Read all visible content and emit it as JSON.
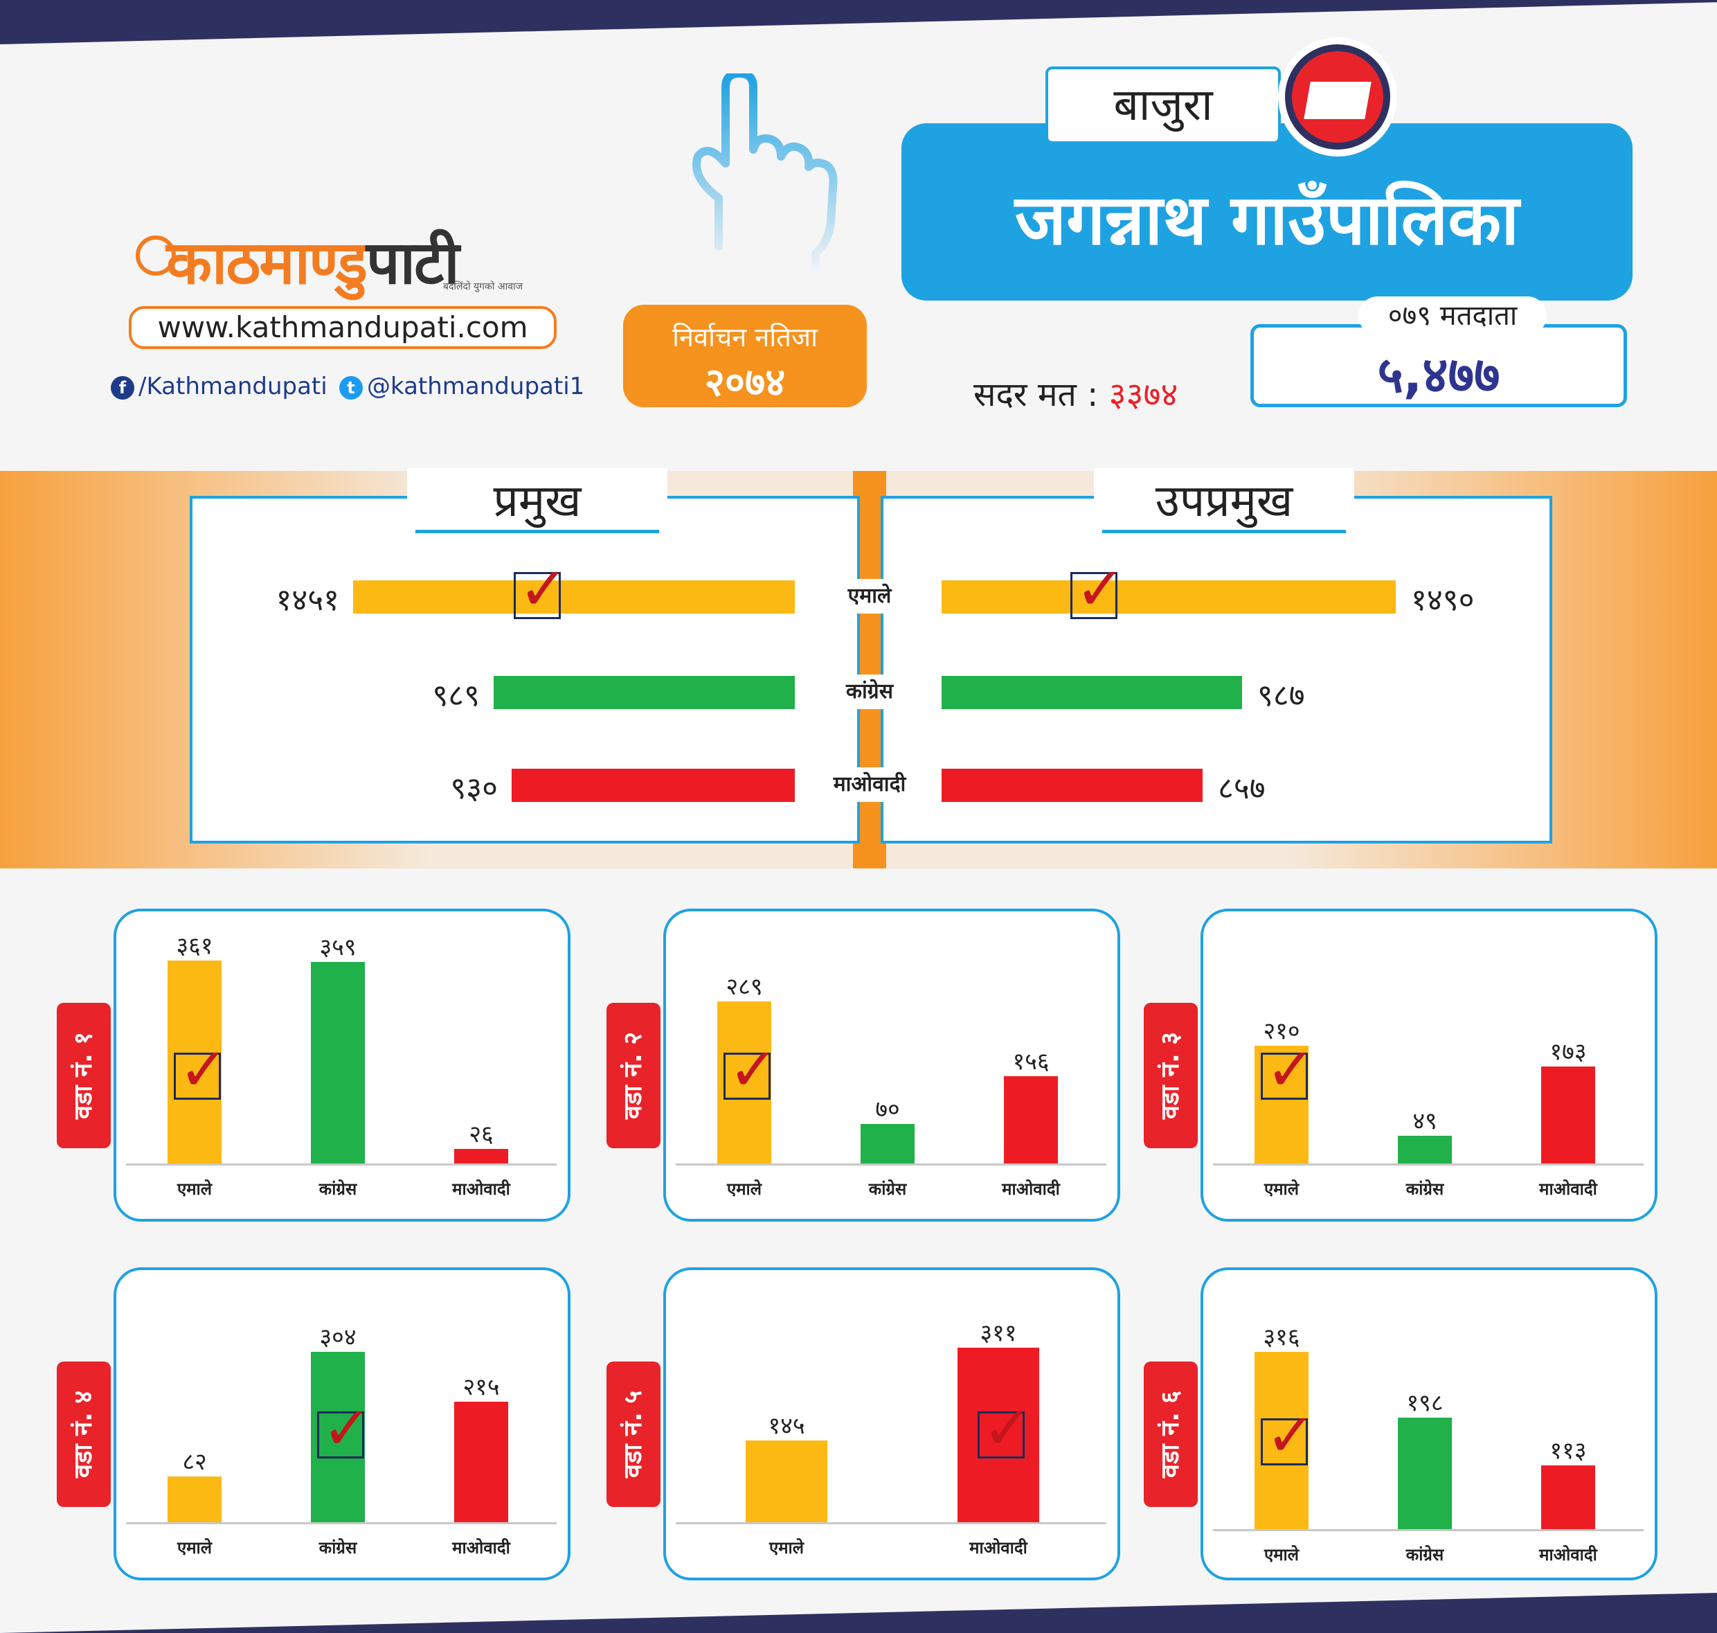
{
  "brand": {
    "logo_main": "काठमाण्डु",
    "logo_accent": "पाटी",
    "tagline": "बदलिंदो युगको आवाज",
    "website": "www.kathmandupati.com",
    "facebook": "/Kathmandupati",
    "twitter": "@kathmandupati1"
  },
  "election": {
    "label_line1": "निर्वाचन नतिजा",
    "label_line2": "२०७४"
  },
  "location": {
    "district": "बाजुरा",
    "municipality": "जगन्नाथ गाउँपालिका",
    "voters_label": "०७९ मतदाता",
    "voters_value": "५,४७७",
    "valid_label": "सदर मत :",
    "valid_value": "३३७४"
  },
  "colors": {
    "uml": "#fdb913",
    "congress": "#21b14b",
    "maoist": "#ed1c24",
    "accent": "#1ea2e2",
    "orange": "#f6921e",
    "navy": "#2e3160"
  },
  "icons": [
    "finger-vote-icon",
    "ballot-box-icon",
    "facebook-icon",
    "twitter-icon",
    "checkmark-icon"
  ],
  "chart_data": [
    {
      "type": "bar",
      "title": "प्रमुख",
      "orientation": "horizontal",
      "categories": [
        "एमाले",
        "कांग्रेस",
        "माओवादी"
      ],
      "values": [
        1451,
        989,
        930
      ],
      "value_labels": [
        "१४५१",
        "९८९",
        "९३०"
      ],
      "winner": "एमाले"
    },
    {
      "type": "bar",
      "title": "उपप्रमुख",
      "orientation": "horizontal",
      "categories": [
        "एमाले",
        "कांग्रेस",
        "माओवादी"
      ],
      "values": [
        1490,
        987,
        857
      ],
      "value_labels": [
        "१४९०",
        "९८७",
        "८५७"
      ],
      "winner": "एमाले"
    },
    {
      "type": "bar",
      "title": "वडा नं. १",
      "categories": [
        "एमाले",
        "कांग्रेस",
        "माओवादी"
      ],
      "values": [
        361,
        359,
        26
      ],
      "value_labels": [
        "३६१",
        "३५९",
        "२६"
      ],
      "winner": "एमाले"
    },
    {
      "type": "bar",
      "title": "वडा नं. २",
      "categories": [
        "एमाले",
        "कांग्रेस",
        "माओवादी"
      ],
      "values": [
        289,
        70,
        156
      ],
      "value_labels": [
        "२८९",
        "७०",
        "१५६"
      ],
      "winner": "एमाले"
    },
    {
      "type": "bar",
      "title": "वडा नं. ३",
      "categories": [
        "एमाले",
        "कांग्रेस",
        "माओवादी"
      ],
      "values": [
        210,
        49,
        173
      ],
      "value_labels": [
        "२१०",
        "४९",
        "१७३"
      ],
      "winner": "एमाले"
    },
    {
      "type": "bar",
      "title": "वडा नं. ४",
      "categories": [
        "एमाले",
        "कांग्रेस",
        "माओवादी"
      ],
      "values": [
        82,
        304,
        215
      ],
      "value_labels": [
        "८२",
        "३०४",
        "२१५"
      ],
      "winner": "कांग्रेस"
    },
    {
      "type": "bar",
      "title": "वडा नं. ५",
      "categories": [
        "एमाले",
        "माओवादी"
      ],
      "values": [
        145,
        311
      ],
      "value_labels": [
        "१४५",
        "३११"
      ],
      "winner": "माओवादी"
    },
    {
      "type": "bar",
      "title": "वडा नं. ६",
      "categories": [
        "एमाले",
        "कांग्रेस",
        "माओवादी"
      ],
      "values": [
        316,
        198,
        113
      ],
      "value_labels": [
        "३१६",
        "१९८",
        "११३"
      ],
      "winner": "एमाले"
    }
  ]
}
